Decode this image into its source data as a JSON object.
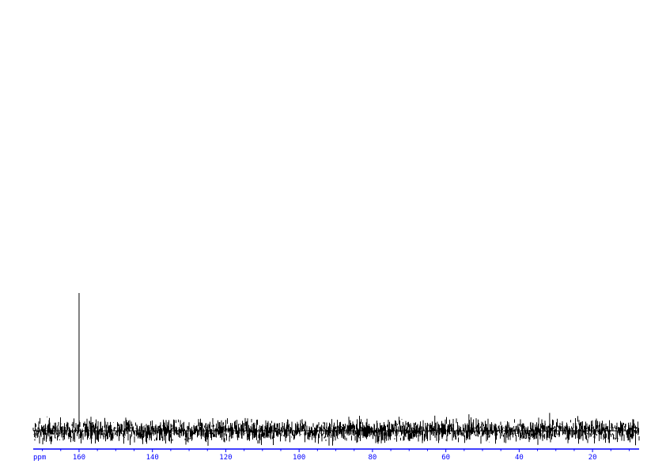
{
  "chart_data": {
    "type": "line",
    "title": "",
    "xlabel": "ppm",
    "ylabel": "",
    "xlim": [
      172.5,
      7.3
    ],
    "x_reversed": true,
    "grid": false,
    "axis_color": "#0000ff",
    "trace_color": "#000000",
    "x_ticks": [
      160,
      140,
      120,
      100,
      80,
      60,
      40,
      20
    ],
    "x_tick_labels": [
      "160",
      "140",
      "120",
      "100",
      "80",
      "60",
      "40",
      "20"
    ],
    "minor_tick_step": 5,
    "peaks": [
      {
        "ppm": 160.0,
        "intensity": 100
      },
      {
        "ppm": 63.0,
        "intensity": 11
      },
      {
        "ppm": 53.7,
        "intensity": 12
      },
      {
        "ppm": 31.7,
        "intensity": 13
      },
      {
        "ppm": 26.7,
        "intensity": -9
      }
    ],
    "noise_level": 3
  }
}
